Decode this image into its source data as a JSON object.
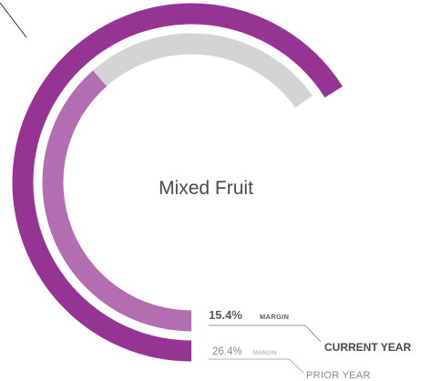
{
  "chart_data": {
    "type": "radial-bar",
    "center_label": "Mixed Fruit",
    "series": [
      {
        "name": "CURRENT YEAR",
        "value": 15.4,
        "unit": "MARGIN",
        "value_label": "15.4%",
        "color": "#b36db1",
        "track_color": "#d4d4d4"
      },
      {
        "name": "PRIOR YEAR",
        "value": 26.4,
        "unit": "MARGIN",
        "value_label": "26.4%",
        "color": "#963494"
      }
    ]
  }
}
